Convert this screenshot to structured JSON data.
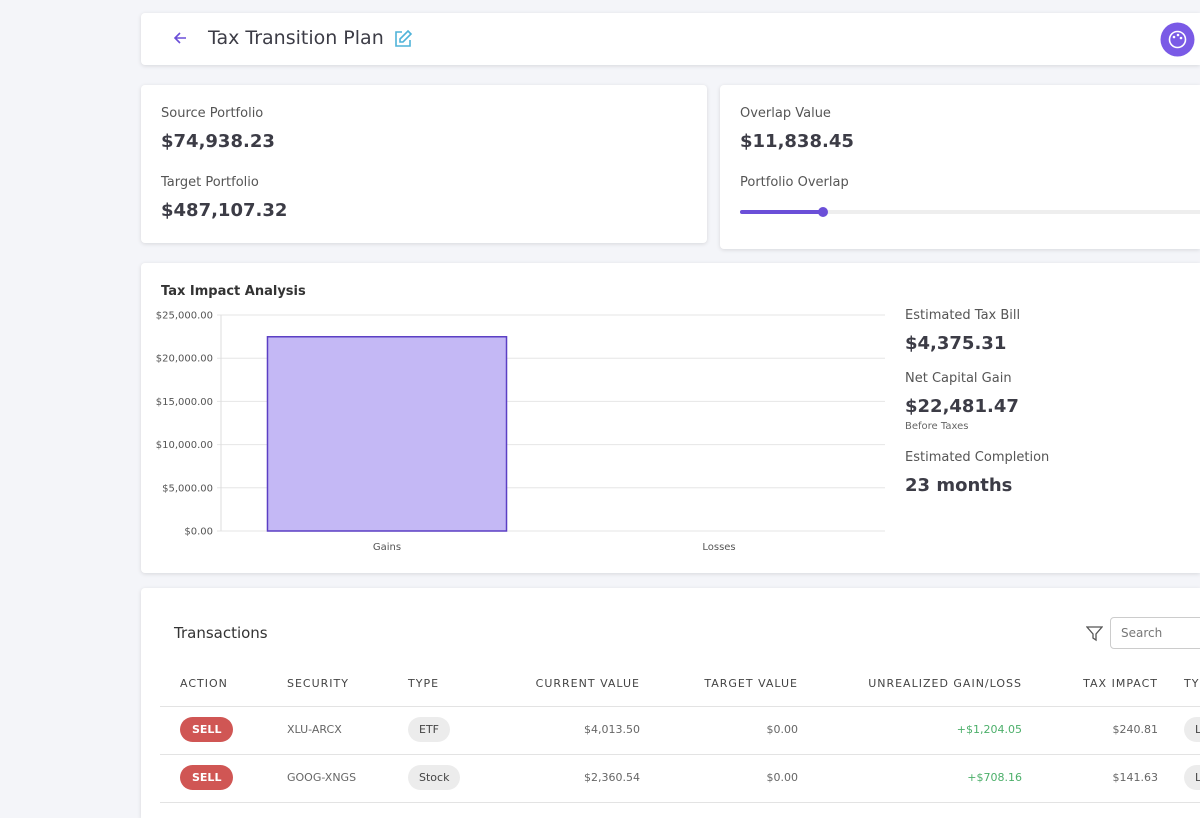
{
  "header": {
    "title": "Tax Transition Plan"
  },
  "summary": {
    "source_label": "Source Portfolio",
    "source_value": "$74,938.23",
    "target_label": "Target Portfolio",
    "target_value": "$487,107.32"
  },
  "overlap": {
    "value_label": "Overlap Value",
    "value": "$11,838.45",
    "slider_label": "Portfolio Overlap",
    "slider_percent": 15.8
  },
  "chart_data": {
    "type": "bar",
    "title": "Tax Impact Analysis",
    "categories": [
      "Gains",
      "Losses"
    ],
    "values": [
      22481.47,
      0
    ],
    "color": "#c4b8f5",
    "border_color": "#5b3fc4",
    "ylim": [
      0,
      25000
    ],
    "yticks": [
      {
        "value": 0,
        "label": "$0.00"
      },
      {
        "value": 5000,
        "label": "$5,000.00"
      },
      {
        "value": 10000,
        "label": "$10,000.00"
      },
      {
        "value": 15000,
        "label": "$15,000.00"
      },
      {
        "value": 20000,
        "label": "$20,000.00"
      },
      {
        "value": 25000,
        "label": "$25,000.00"
      }
    ],
    "grid": true
  },
  "stats": [
    {
      "label": "Estimated Tax Bill",
      "value": "$4,375.31"
    },
    {
      "label": "Net Capital Gain",
      "value": "$22,481.47",
      "note": "Before Taxes"
    },
    {
      "label": "Estimated Completion",
      "value": "23 months"
    }
  ],
  "transactions": {
    "title": "Transactions",
    "search_placeholder": "Search",
    "columns": [
      "ACTION",
      "SECURITY",
      "TYPE",
      "CURRENT VALUE",
      "TARGET VALUE",
      "UNREALIZED GAIN/LOSS",
      "TAX IMPACT",
      "TY"
    ],
    "rows": [
      [
        "SELL",
        "XLU-ARCX",
        "ETF",
        "$4,013.50",
        "$0.00",
        "+$1,204.05",
        "$240.81",
        "L"
      ],
      [
        "SELL",
        "GOOG-XNGS",
        "Stock",
        "$2,360.54",
        "$0.00",
        "+$708.16",
        "$141.63",
        "L"
      ]
    ]
  }
}
